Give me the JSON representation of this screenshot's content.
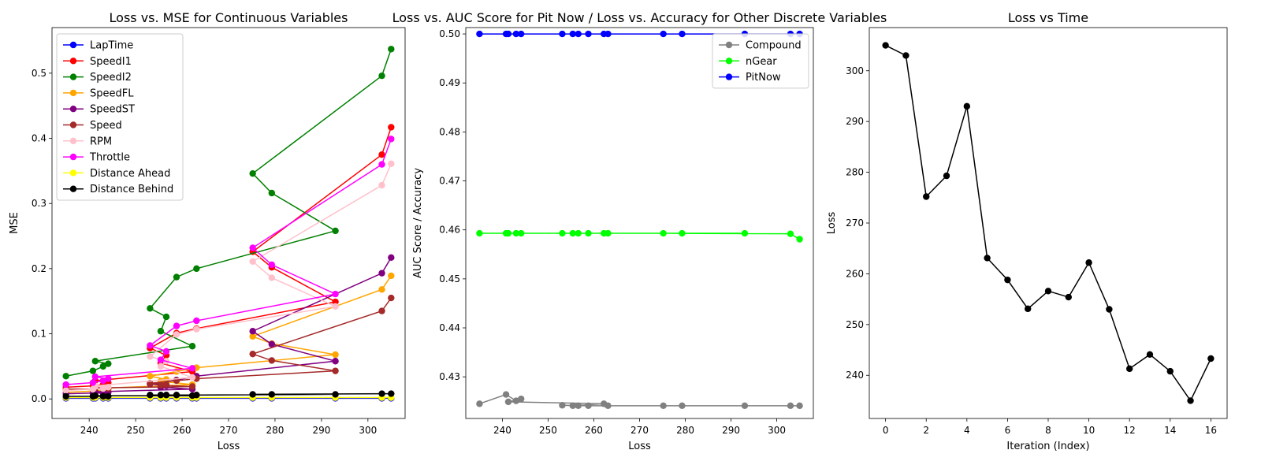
{
  "chart_data": [
    {
      "type": "line",
      "title": "Loss vs. MSE for Continuous Variables",
      "xlabel": "Loss",
      "ylabel": "MSE",
      "xlim": [
        232,
        308
      ],
      "ylim": [
        -0.03,
        0.57
      ],
      "xticks": [
        240,
        250,
        260,
        270,
        280,
        290,
        300
      ],
      "yticks": [
        0.0,
        0.1,
        0.2,
        0.3,
        0.4,
        0.5
      ],
      "grid": false,
      "legend": "top-left",
      "x": [
        305.0,
        303.0,
        275.2,
        279.3,
        293.0,
        263.1,
        258.8,
        253.1,
        256.6,
        255.4,
        262.2,
        241.3,
        244.1,
        243.0,
        240.8,
        235.0
      ],
      "series": [
        {
          "name": "LapTime",
          "color": "#0000ff",
          "values": [
            0.001,
            0.001,
            0.001,
            0.001,
            0.001,
            0.001,
            0.001,
            0.001,
            0.001,
            0.001,
            0.001,
            0.001,
            0.001,
            0.001,
            0.001,
            0.001
          ]
        },
        {
          "name": "SpeedI1",
          "color": "#ff0000",
          "values": [
            0.417,
            0.375,
            0.226,
            0.202,
            0.149,
            0.108,
            0.101,
            0.078,
            0.067,
            0.055,
            0.042,
            0.028,
            0.025,
            0.022,
            0.02,
            0.018
          ]
        },
        {
          "name": "SpeedI2",
          "color": "#008000",
          "values": [
            0.537,
            0.496,
            0.346,
            0.316,
            0.258,
            0.2,
            0.187,
            0.139,
            0.126,
            0.104,
            0.081,
            0.058,
            0.054,
            0.05,
            0.043,
            0.035
          ]
        },
        {
          "name": "SpeedFL",
          "color": "#ffa500",
          "values": [
            0.189,
            0.168,
            0.096,
            0.085,
            0.068,
            0.048,
            0.042,
            0.035,
            0.03,
            0.027,
            0.022,
            0.016,
            0.014,
            0.013,
            0.012,
            0.01
          ]
        },
        {
          "name": "SpeedST",
          "color": "#800080",
          "values": [
            0.217,
            0.193,
            0.104,
            0.084,
            0.058,
            0.035,
            0.029,
            0.023,
            0.02,
            0.018,
            0.015,
            0.011,
            0.01,
            0.009,
            0.009,
            0.008
          ]
        },
        {
          "name": "Speed",
          "color": "#a52a2a",
          "values": [
            0.155,
            0.135,
            0.069,
            0.059,
            0.043,
            0.031,
            0.028,
            0.024,
            0.022,
            0.021,
            0.019,
            0.017,
            0.016,
            0.016,
            0.015,
            0.015
          ]
        },
        {
          "name": "RPM",
          "color": "#ffc0cb",
          "values": [
            0.361,
            0.328,
            0.211,
            0.186,
            0.142,
            0.107,
            0.099,
            0.065,
            0.058,
            0.05,
            0.033,
            0.02,
            0.018,
            0.016,
            0.015,
            0.013
          ]
        },
        {
          "name": "Throttle",
          "color": "#ff00ff",
          "values": [
            0.399,
            0.36,
            0.232,
            0.206,
            0.161,
            0.12,
            0.112,
            0.082,
            0.073,
            0.06,
            0.047,
            0.034,
            0.031,
            0.028,
            0.025,
            0.022
          ]
        },
        {
          "name": "Distance Ahead",
          "color": "#ffff00",
          "values": [
            0.002,
            0.002,
            0.002,
            0.002,
            0.002,
            0.002,
            0.002,
            0.002,
            0.002,
            0.002,
            0.002,
            0.002,
            0.002,
            0.002,
            0.002,
            0.002
          ]
        },
        {
          "name": "Distance Behind",
          "color": "#000000",
          "values": [
            0.008,
            0.008,
            0.007,
            0.007,
            0.007,
            0.006,
            0.006,
            0.006,
            0.006,
            0.006,
            0.005,
            0.005,
            0.004,
            0.004,
            0.004,
            0.004
          ]
        }
      ]
    },
    {
      "type": "line",
      "title": "Loss vs. AUC Score for Pit Now / Loss vs. Accuracy for Other Discrete Variables",
      "xlabel": "Loss",
      "ylabel": "AUC Score / Accuracy",
      "xlim": [
        232,
        308
      ],
      "ylim": [
        0.4215,
        0.5013
      ],
      "xticks": [
        240,
        250,
        260,
        270,
        280,
        290,
        300
      ],
      "yticks": [
        0.43,
        0.44,
        0.45,
        0.46,
        0.47,
        0.48,
        0.49,
        0.5
      ],
      "grid": false,
      "legend": "top-right",
      "x": [
        305.0,
        303.0,
        275.2,
        279.3,
        293.0,
        263.1,
        258.8,
        253.1,
        256.6,
        255.4,
        262.2,
        241.3,
        244.1,
        243.0,
        240.8,
        235.0
      ],
      "series": [
        {
          "name": "Compound",
          "color": "#808080",
          "values": [
            0.4241,
            0.4241,
            0.4241,
            0.4241,
            0.4241,
            0.4241,
            0.4241,
            0.4242,
            0.4241,
            0.4241,
            0.4245,
            0.4249,
            0.4255,
            0.4251,
            0.4264,
            0.4245
          ]
        },
        {
          "name": "nGear",
          "color": "#00ff00",
          "values": [
            0.4581,
            0.4592,
            0.4593,
            0.4593,
            0.4593,
            0.4593,
            0.4593,
            0.4593,
            0.4593,
            0.4593,
            0.4593,
            0.4593,
            0.4593,
            0.4593,
            0.4593,
            0.4593
          ]
        },
        {
          "name": "PitNow",
          "color": "#0000ff",
          "values": [
            0.5,
            0.5,
            0.5,
            0.5,
            0.5,
            0.5,
            0.5,
            0.5,
            0.5,
            0.5,
            0.5,
            0.5,
            0.5,
            0.5,
            0.5,
            0.5
          ]
        }
      ]
    },
    {
      "type": "line",
      "title": "Loss vs Time",
      "xlabel": "Iteration (Index)",
      "ylabel": "Loss",
      "xlim": [
        -0.8,
        16.8
      ],
      "ylim": [
        231.5,
        308.5
      ],
      "xticks": [
        0,
        2,
        4,
        6,
        8,
        10,
        12,
        14,
        16
      ],
      "yticks": [
        240,
        250,
        260,
        270,
        280,
        290,
        300
      ],
      "grid": false,
      "x": [
        0,
        1,
        2,
        3,
        4,
        5,
        6,
        7,
        8,
        9,
        10,
        11,
        12,
        13,
        14,
        15,
        16
      ],
      "series": [
        {
          "color": "#000000",
          "values": [
            305.0,
            303.0,
            275.2,
            279.3,
            293.0,
            263.1,
            258.8,
            253.1,
            256.6,
            255.4,
            262.2,
            253.0,
            241.3,
            244.1,
            240.8,
            235.0,
            243.3
          ]
        }
      ]
    }
  ]
}
